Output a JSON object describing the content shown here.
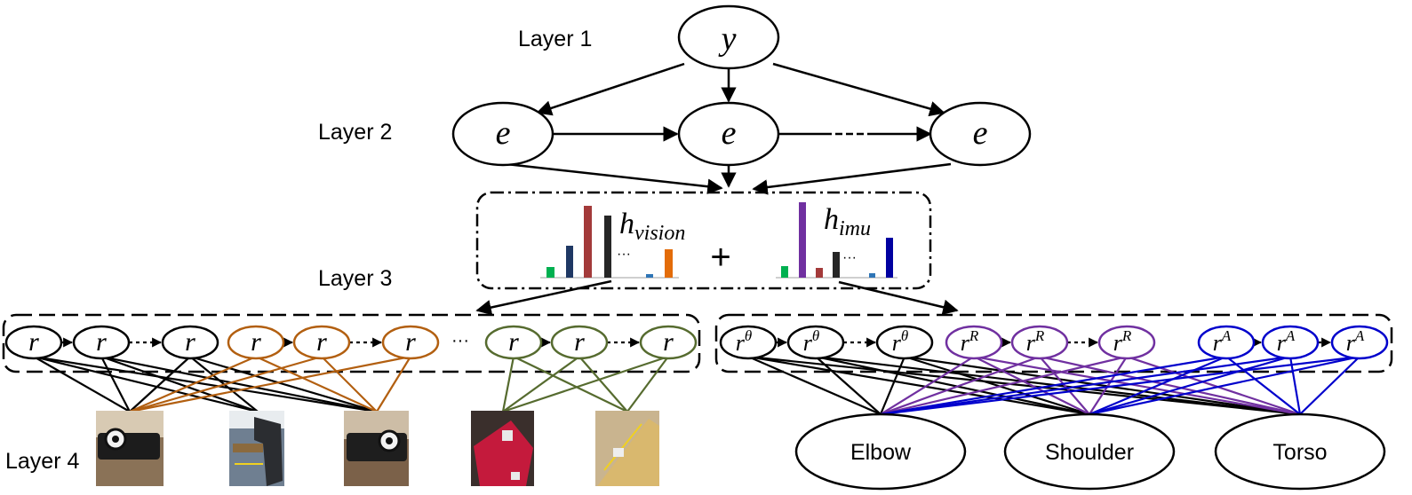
{
  "layers": {
    "layer1": "Layer 1",
    "layer2": "Layer 2",
    "layer3": "Layer 3",
    "layer4": "Layer 4"
  },
  "nodes": {
    "y": "y",
    "e": "e",
    "r": "r",
    "r_theta_base": "r",
    "r_theta_sup": "θ",
    "r_R_sup": "R",
    "r_A_sup": "A",
    "ellipsis": "···",
    "plus": "+"
  },
  "histograms": {
    "vision": {
      "base": "h",
      "sub": "vision",
      "dots": "···"
    },
    "imu": {
      "base": "h",
      "sub": "imu",
      "dots": "···"
    }
  },
  "body_parts": [
    "Elbow",
    "Shoulder",
    "Torso"
  ],
  "colors": {
    "black": "#000000",
    "brown": "#b25f10",
    "olive": "#566b2f",
    "purple": "#7030a0",
    "blue": "#0000cc",
    "bar_green": "#00b050",
    "bar_navy": "#1f3864",
    "bar_red": "#a33a3a",
    "bar_dark": "#262626",
    "bar_teal": "#2e75b6",
    "bar_orange": "#e36c09",
    "bar_purple": "#7030a0",
    "bar_blue": "#0000a0"
  },
  "photos": [
    "wrist-sensor",
    "hammer",
    "wrist-sensor-2",
    "red-box",
    "wooden-box"
  ]
}
